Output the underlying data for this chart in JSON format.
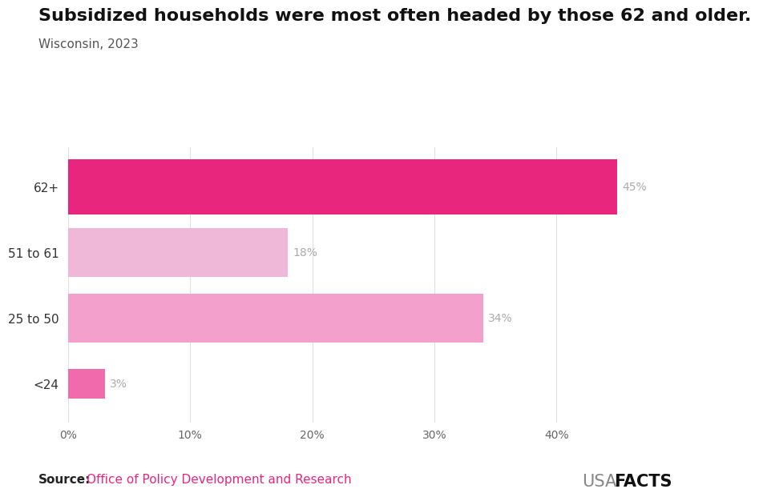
{
  "categories": [
    "<24",
    "25 to 50",
    "51 to 61",
    "62+"
  ],
  "values": [
    3,
    34,
    18,
    45
  ],
  "bar_colors": [
    "#f06bab",
    "#f4a0cc",
    "#f0b8d8",
    "#e8267e"
  ],
  "title": "Subsidized households were most often headed by those 62 and older.",
  "subtitle": "Wisconsin, 2023",
  "xlim": [
    0,
    50
  ],
  "xticks": [
    0,
    10,
    20,
    30,
    40
  ],
  "xtick_labels": [
    "0%",
    "10%",
    "20%",
    "30%",
    "40%"
  ],
  "title_fontsize": 16,
  "subtitle_fontsize": 11,
  "label_fontsize": 10,
  "tick_fontsize": 10,
  "ytick_fontsize": 11,
  "background_color": "#ffffff",
  "source_bold": "Source:",
  "source_normal": "Office of Policy Development and Research",
  "source_fontsize": 11,
  "source_bold_color": "#222222",
  "source_normal_color": "#e8267e",
  "usa_text": "USA",
  "facts_text": "FACTS",
  "usafacts_fontsize": 15,
  "usa_color": "#888888",
  "facts_color": "#111111",
  "grid_color": "#e0e0e0",
  "label_color": "#aaaaaa",
  "ytick_color": "#333333",
  "xtick_color": "#666666"
}
